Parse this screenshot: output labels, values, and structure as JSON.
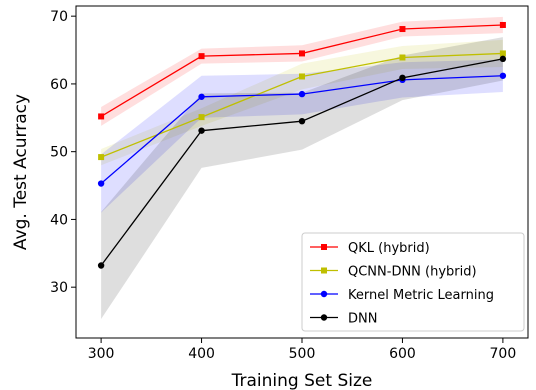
{
  "chart_data": {
    "type": "line",
    "title": "",
    "xlabel": "Training Set Size",
    "ylabel": "Avg. Test Acurracy",
    "x": [
      300,
      400,
      500,
      600,
      700
    ],
    "xlim": [
      275,
      725
    ],
    "ylim": [
      22.5,
      71.5
    ],
    "xticks": [
      "300",
      "400",
      "500",
      "600",
      "700"
    ],
    "yticks": [
      "30",
      "40",
      "50",
      "60",
      "70"
    ],
    "xtick_values": [
      300,
      400,
      500,
      600,
      700
    ],
    "ytick_values": [
      30,
      40,
      50,
      60,
      70
    ],
    "grid": false,
    "legend_position": "lower-right",
    "series": [
      {
        "name": "QKL (hybrid)",
        "color": "#ff0000",
        "marker": "square",
        "values": [
          55.2,
          64.1,
          64.5,
          68.1,
          68.7
        ],
        "lower": [
          53.8,
          63.0,
          63.3,
          67.0,
          67.5
        ],
        "upper": [
          56.6,
          65.2,
          65.7,
          69.2,
          69.9
        ]
      },
      {
        "name": "QCNN-DNN (hybrid)",
        "color": "#bfbf00",
        "marker": "square",
        "values": [
          49.2,
          55.1,
          61.1,
          63.9,
          64.5
        ],
        "lower": [
          48.0,
          53.8,
          59.2,
          62.2,
          62.5
        ],
        "upper": [
          50.4,
          56.4,
          63.0,
          65.6,
          66.5
        ]
      },
      {
        "name": "Kernel Metric Learning",
        "color": "#0000ff",
        "marker": "circle",
        "values": [
          45.3,
          58.1,
          58.5,
          60.6,
          61.2
        ],
        "lower": [
          41.0,
          55.0,
          55.5,
          58.0,
          58.8
        ],
        "upper": [
          49.6,
          61.2,
          61.5,
          63.2,
          63.6
        ]
      },
      {
        "name": "DNN",
        "color": "#000000",
        "marker": "circle",
        "values": [
          33.2,
          53.1,
          54.5,
          60.9,
          63.7
        ],
        "lower": [
          25.3,
          47.6,
          50.3,
          57.6,
          60.5
        ],
        "upper": [
          41.1,
          58.6,
          58.7,
          64.2,
          66.9
        ]
      }
    ]
  }
}
